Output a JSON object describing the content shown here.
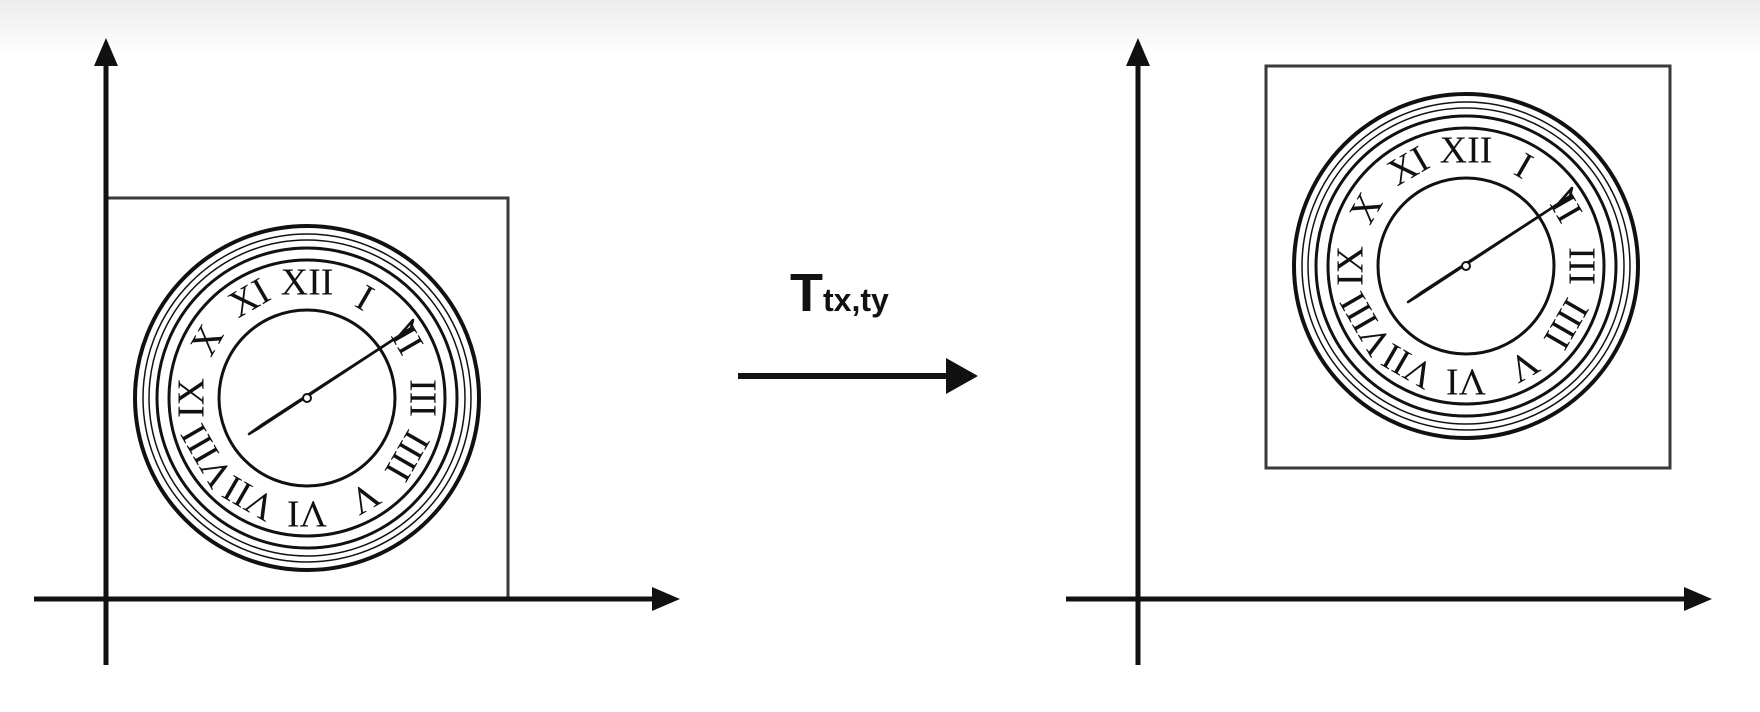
{
  "transform": {
    "symbol": "T",
    "subscript": "tx,ty"
  },
  "clock": {
    "numerals": [
      "XII",
      "I",
      "II",
      "III",
      "IIII",
      "V",
      "VI",
      "VII",
      "VIII",
      "IX",
      "X",
      "XI"
    ]
  },
  "colors": {
    "ink": "#111111",
    "box": "#3a3a3a",
    "background": "#ffffff"
  }
}
